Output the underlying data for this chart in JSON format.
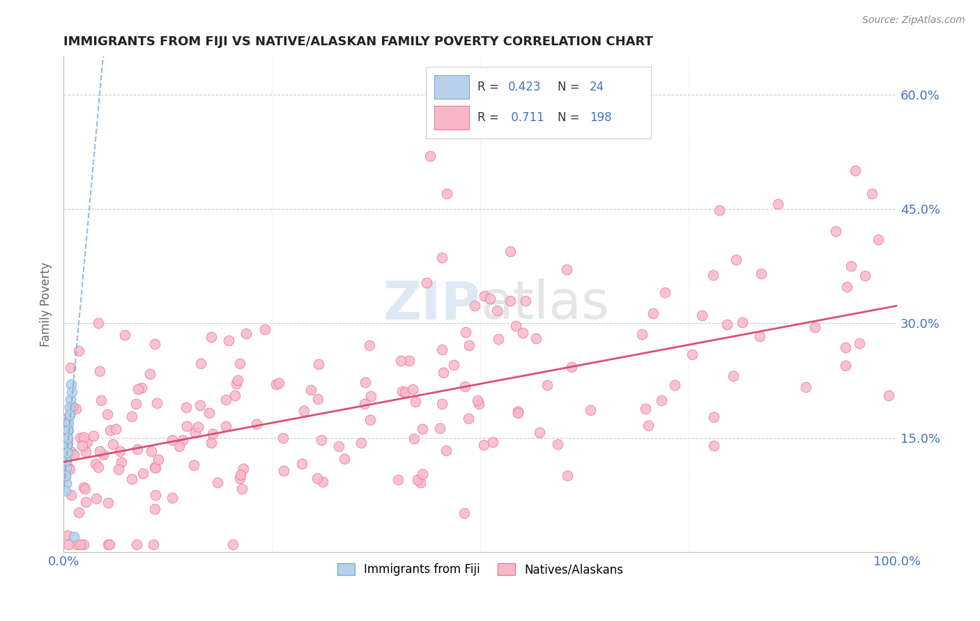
{
  "title": "IMMIGRANTS FROM FIJI VS NATIVE/ALASKAN FAMILY POVERTY CORRELATION CHART",
  "source": "Source: ZipAtlas.com",
  "ylabel": "Family Poverty",
  "xlim": [
    0.0,
    1.0
  ],
  "ylim": [
    0.0,
    0.65
  ],
  "ytick_labels": [
    "15.0%",
    "30.0%",
    "45.0%",
    "60.0%"
  ],
  "ytick_values": [
    0.15,
    0.3,
    0.45,
    0.6
  ],
  "xtick_labels": [
    "0.0%",
    "100.0%"
  ],
  "fiji_color": "#b8d0ea",
  "fiji_edge_color": "#7aadd4",
  "native_color": "#f9b8c8",
  "native_edge_color": "#e8789a",
  "fiji_trend_color": "#7aadd4",
  "native_trend_color": "#d95070",
  "fiji_R": 0.423,
  "fiji_N": 24,
  "native_R": 0.711,
  "native_N": 198,
  "stat_color": "#4472c4",
  "watermark_zip_color": "#c5d8ef",
  "watermark_atlas_color": "#d0d0d0",
  "grid_color": "#cccccc",
  "background_color": "#ffffff",
  "title_color": "#222222",
  "ylabel_color": "#666666",
  "source_color": "#888888",
  "tick_color": "#4472c4"
}
